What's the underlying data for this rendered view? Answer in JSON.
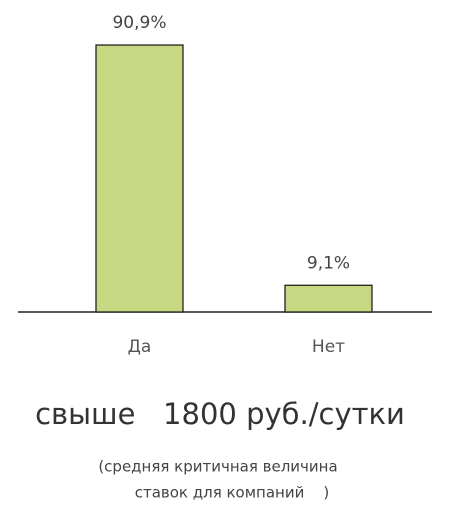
{
  "chart_data": {
    "type": "bar",
    "categories": [
      "Да",
      "Нет"
    ],
    "values": [
      90.9,
      9.1
    ],
    "value_labels": [
      "90,9%",
      "9,1%"
    ],
    "color": "#c6d982",
    "annotations": [
      "свыше   1800 руб./сутки",
      "(средняя критичная величина",
      "ставок для компаний    )"
    ]
  }
}
